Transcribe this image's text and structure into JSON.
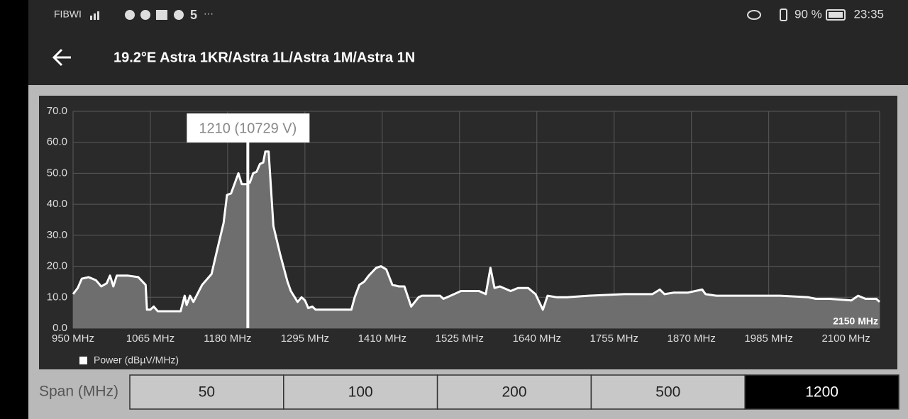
{
  "status_bar": {
    "carrier": "FIBWI",
    "battery": "90 %",
    "time": "23:35"
  },
  "header": {
    "title": "19.2°E Astra 1KR/Astra 1L/Astra 1M/Astra 1N"
  },
  "chart_data": {
    "type": "area",
    "x": [
      950,
      957,
      963,
      973,
      984,
      992,
      1000,
      1005,
      1010,
      1015,
      1031,
      1047,
      1058,
      1060,
      1065,
      1070,
      1076,
      1110,
      1116,
      1119,
      1124,
      1129,
      1142,
      1156,
      1163,
      1174,
      1179,
      1185,
      1196,
      1201,
      1209,
      1213,
      1218,
      1223,
      1228,
      1233,
      1236,
      1241,
      1248,
      1258,
      1269,
      1274,
      1284,
      1290,
      1295,
      1300,
      1306,
      1311,
      1364,
      1369,
      1376,
      1383,
      1390,
      1401,
      1408,
      1416,
      1425,
      1435,
      1443,
      1453,
      1464,
      1469,
      1496,
      1501,
      1517,
      1527,
      1554,
      1564,
      1571,
      1577,
      1585,
      1601,
      1612,
      1627,
      1638,
      1649,
      1656,
      1670,
      1685,
      1717,
      1770,
      1812,
      1823,
      1830,
      1844,
      1854,
      1865,
      1886,
      1891,
      1907,
      1960,
      2002,
      2044,
      2055,
      2076,
      2108,
      2118,
      2129,
      2145,
      2150
    ],
    "series": [
      {
        "name": "Power (dBµV/MHz)",
        "color": "#ffffff",
        "fill": "#6e6e6e",
        "values": [
          11,
          13,
          16,
          16.5,
          15.5,
          13.5,
          14.5,
          17,
          13.5,
          17,
          17,
          16.5,
          14,
          6,
          6,
          7,
          5.5,
          5.5,
          10.5,
          7.5,
          10.5,
          8.5,
          14,
          17.5,
          24,
          34,
          43,
          43.5,
          50,
          46.5,
          46.5,
          47,
          50,
          50.5,
          53,
          53.5,
          57,
          57,
          33,
          24,
          15,
          12,
          8.5,
          10,
          9,
          6.5,
          7,
          6,
          6,
          10,
          14,
          15,
          17,
          19.5,
          20,
          19,
          14,
          13.5,
          13.5,
          7,
          10,
          10.5,
          10.5,
          9.5,
          11,
          12,
          12,
          11,
          19.5,
          13,
          13.5,
          12,
          13,
          13,
          11,
          6,
          10.5,
          10,
          10,
          10.5,
          11,
          11,
          12.5,
          11,
          11.5,
          11.5,
          11.5,
          12.5,
          11,
          10.5,
          10.5,
          10.5,
          10,
          9.5,
          9.5,
          9,
          10.5,
          9.5,
          9.5,
          8.5
        ]
      }
    ],
    "xlim": [
      950,
      2150
    ],
    "xticks": [
      {
        "value": 950,
        "label": "950 MHz"
      },
      {
        "value": 1065,
        "label": "1065 MHz"
      },
      {
        "value": 1180,
        "label": "1180 MHz"
      },
      {
        "value": 1295,
        "label": "1295 MHz"
      },
      {
        "value": 1410,
        "label": "1410 MHz"
      },
      {
        "value": 1525,
        "label": "1525 MHz"
      },
      {
        "value": 1640,
        "label": "1640 MHz"
      },
      {
        "value": 1755,
        "label": "1755 MHz"
      },
      {
        "value": 1870,
        "label": "1870 MHz"
      },
      {
        "value": 1985,
        "label": "1985 MHz"
      },
      {
        "value": 2100,
        "label": "2100 MHz"
      }
    ],
    "range_end_label": "2150 MHz",
    "ylim": [
      0,
      70
    ],
    "yticks": [
      {
        "value": 0,
        "label": "0.0"
      },
      {
        "value": 10,
        "label": "10.0"
      },
      {
        "value": 20,
        "label": "20.0"
      },
      {
        "value": 30,
        "label": "30.0"
      },
      {
        "value": 40,
        "label": "40.0"
      },
      {
        "value": 50,
        "label": "50.0"
      },
      {
        "value": 60,
        "label": "60.0"
      },
      {
        "value": 70,
        "label": "70.0"
      }
    ],
    "grid": true,
    "cursor": {
      "x": 1210,
      "label": "1210 (10729 V)"
    }
  },
  "span": {
    "label": "Span (MHz)",
    "options": [
      "50",
      "100",
      "200",
      "500",
      "1200"
    ],
    "selected": 4
  }
}
